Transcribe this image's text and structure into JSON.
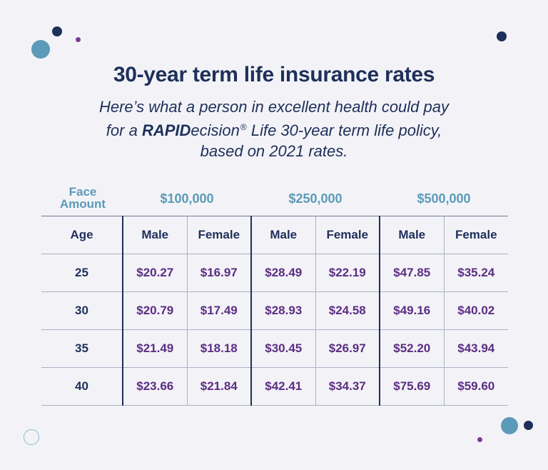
{
  "colors": {
    "background": "#f3f3f7",
    "navy": "#1e2f5a",
    "teal": "#5b9ab8",
    "purple": "#5b2d83",
    "decor_dots": [
      "#5b9ab8",
      "#1e2f5a",
      "#7a3c93",
      "#1e2f5a",
      "#5b9ab8",
      "#1e2f5a",
      "#7a3c93"
    ]
  },
  "header": {
    "title": "30-year term life insurance rates",
    "subtitle_line1": "Here’s what a person in excellent health could pay",
    "subtitle_line2_pre": "for a ",
    "subtitle_brand_bold": "RAPID",
    "subtitle_brand_rest": "ecision",
    "subtitle_reg_mark": "®",
    "subtitle_line2_post": " Life 30-year term life policy,",
    "subtitle_line3": "based on 2021 rates."
  },
  "chart_data": {
    "type": "table",
    "title": "30-year term life insurance rates",
    "face_amount_label_line1": "Face",
    "face_amount_label_line2": "Amount",
    "face_amounts": [
      "$100,000",
      "$250,000",
      "$500,000"
    ],
    "row_header": "Age",
    "sub_columns": [
      "Male",
      "Female"
    ],
    "rows": [
      {
        "age": "25",
        "values": [
          "$20.27",
          "$16.97",
          "$28.49",
          "$22.19",
          "$47.85",
          "$35.24"
        ]
      },
      {
        "age": "30",
        "values": [
          "$20.79",
          "$17.49",
          "$28.93",
          "$24.58",
          "$49.16",
          "$40.02"
        ]
      },
      {
        "age": "35",
        "values": [
          "$21.49",
          "$18.18",
          "$30.45",
          "$26.97",
          "$52.20",
          "$43.94"
        ]
      },
      {
        "age": "40",
        "values": [
          "$23.66",
          "$21.84",
          "$42.41",
          "$34.37",
          "$75.69",
          "$59.60"
        ]
      }
    ]
  }
}
